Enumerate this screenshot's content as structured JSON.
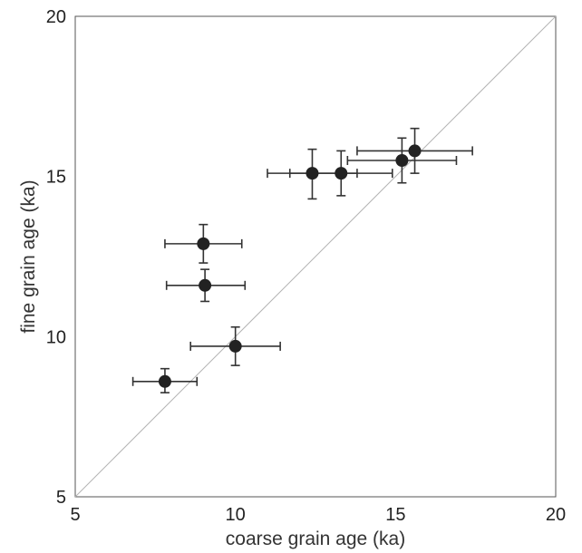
{
  "chart_data": {
    "type": "scatter",
    "xlabel": "coarse grain age (ka)",
    "ylabel": "fine grain age (ka)",
    "xlim": [
      5,
      20
    ],
    "ylim": [
      5,
      20
    ],
    "x_ticks": [
      "5",
      "10",
      "15",
      "20"
    ],
    "y_ticks": [
      "5",
      "10",
      "15",
      "20"
    ],
    "grid": false,
    "reference_line": "1:1 diagonal",
    "points": [
      {
        "x": 7.8,
        "y": 8.6,
        "x_err": [
          6.8,
          8.8
        ],
        "y_err": [
          8.25,
          9.0
        ]
      },
      {
        "x": 10.0,
        "y": 9.7,
        "x_err": [
          8.6,
          11.4
        ],
        "y_err": [
          9.1,
          10.3
        ]
      },
      {
        "x": 9.05,
        "y": 11.6,
        "x_err": [
          7.85,
          10.3
        ],
        "y_err": [
          11.1,
          12.1
        ]
      },
      {
        "x": 9.0,
        "y": 12.9,
        "x_err": [
          7.8,
          10.2
        ],
        "y_err": [
          12.3,
          13.5
        ]
      },
      {
        "x": 12.4,
        "y": 15.1,
        "x_err": [
          11.0,
          13.8
        ],
        "y_err": [
          14.3,
          15.85
        ]
      },
      {
        "x": 13.3,
        "y": 15.1,
        "x_err": [
          11.7,
          14.9
        ],
        "y_err": [
          14.4,
          15.8
        ]
      },
      {
        "x": 15.2,
        "y": 15.5,
        "x_err": [
          13.5,
          16.9
        ],
        "y_err": [
          14.8,
          16.2
        ]
      },
      {
        "x": 15.6,
        "y": 15.8,
        "x_err": [
          13.8,
          17.4
        ],
        "y_err": [
          15.1,
          16.5
        ]
      }
    ],
    "colors": {
      "point": "#222222",
      "error_bar": "#333333",
      "reference_line": "#b3b3b3",
      "axes": "#555555"
    }
  }
}
